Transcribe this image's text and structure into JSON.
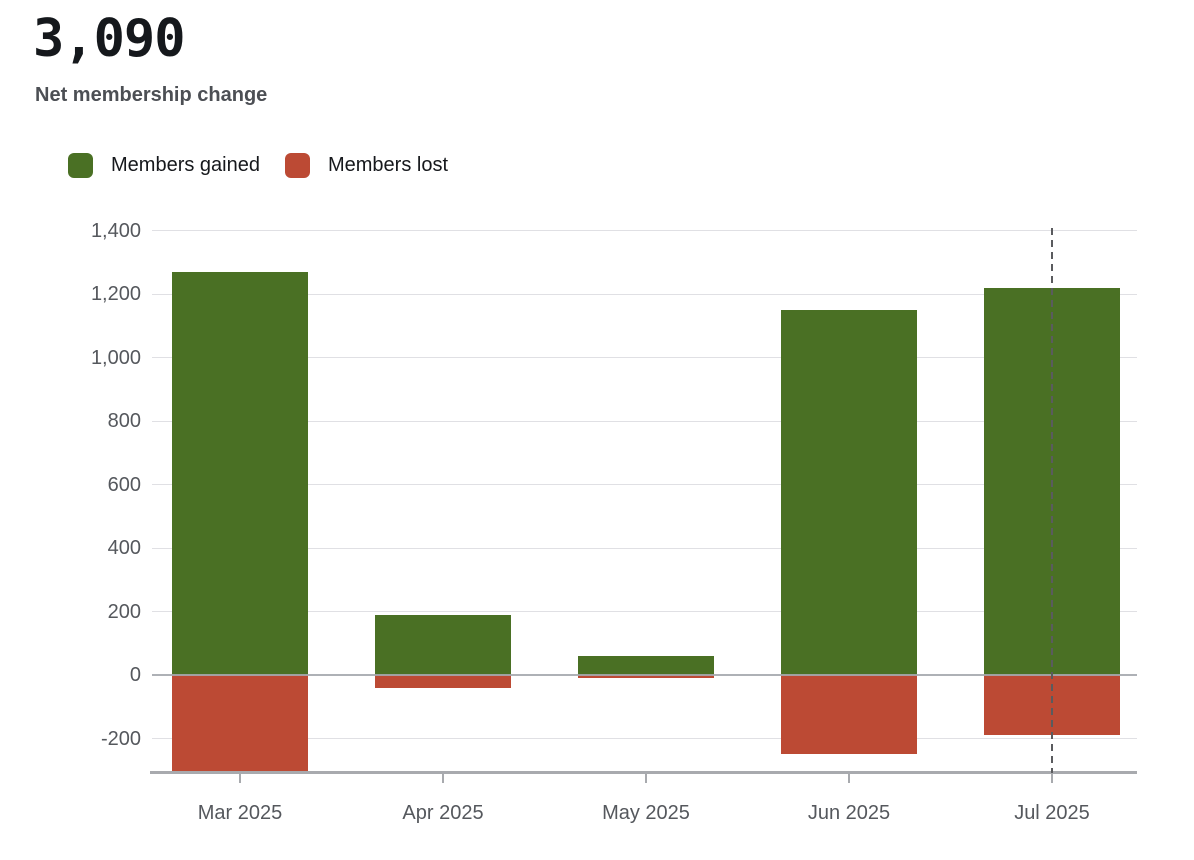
{
  "header": {
    "value": "3,090",
    "subtitle": "Net membership change"
  },
  "legend": {
    "items": [
      {
        "label": "Members gained",
        "color": "#4a7024"
      },
      {
        "label": "Members lost",
        "color": "#bc4a34"
      }
    ]
  },
  "colors": {
    "gained": "#4a7024",
    "lost": "#bc4a34",
    "grid": "#e0e0e4",
    "zero_line": "#a5a8ae",
    "axis": "#a8aaae",
    "tick_label": "#55585d",
    "dashed_line": "#5a5b5e"
  },
  "chart_data": {
    "type": "bar",
    "stacked": true,
    "title": "Net membership change",
    "net_total": 3090,
    "categories": [
      "Mar 2025",
      "Apr 2025",
      "May 2025",
      "Jun 2025",
      "Jul 2025"
    ],
    "series": [
      {
        "name": "Members gained",
        "color": "#4a7024",
        "values": [
          1270,
          190,
          60,
          1150,
          1220
        ]
      },
      {
        "name": "Members lost",
        "color": "#bc4a34",
        "values": [
          -310,
          -40,
          -10,
          -250,
          -190
        ]
      }
    ],
    "xlabel": "",
    "ylabel": "",
    "ylim": [
      -310,
      1400
    ],
    "yticks": [
      -200,
      0,
      200,
      400,
      600,
      800,
      1000,
      1200,
      1400
    ],
    "ytick_labels": [
      "-200",
      "0",
      "200",
      "400",
      "600",
      "800",
      "1,000",
      "1,200",
      "1,400"
    ],
    "grid": true,
    "legend_position": "top-left",
    "annotations": [
      {
        "type": "vline",
        "style": "dashed",
        "category": "Jul 2025"
      }
    ]
  }
}
